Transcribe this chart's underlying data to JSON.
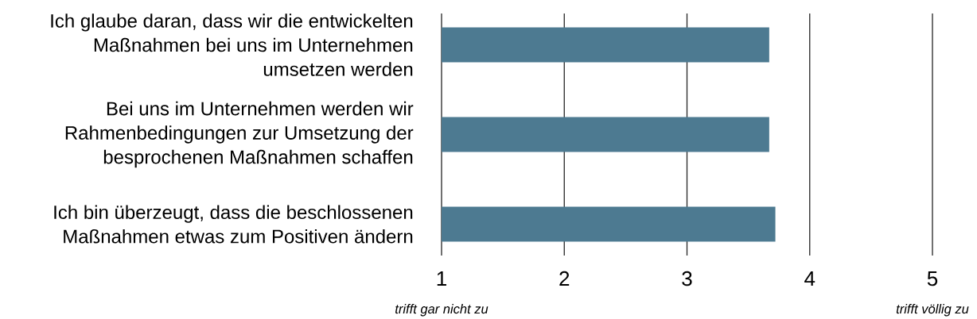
{
  "chart_data": {
    "type": "bar",
    "orientation": "horizontal",
    "categories": [
      "Ich glaube daran, dass wir die entwickelten Maßnahmen bei uns im Unternehmen umsetzen werden",
      "Bei uns im Unternehmen werden wir Rahmenbedingungen zur Umsetzung der besprochenen Maßnahmen schaffen",
      "Ich bin überzeugt, dass die beschlossenen Maßnahmen etwas zum Positiven ändern"
    ],
    "values": [
      3.67,
      3.67,
      3.72
    ],
    "color": "#4d7a91",
    "xlim": [
      1,
      5
    ],
    "xticks": [
      1,
      2,
      3,
      4,
      5
    ],
    "grid": "x",
    "annotations": [
      "trifft gar nicht zu",
      "trifft völlig zu"
    ]
  }
}
